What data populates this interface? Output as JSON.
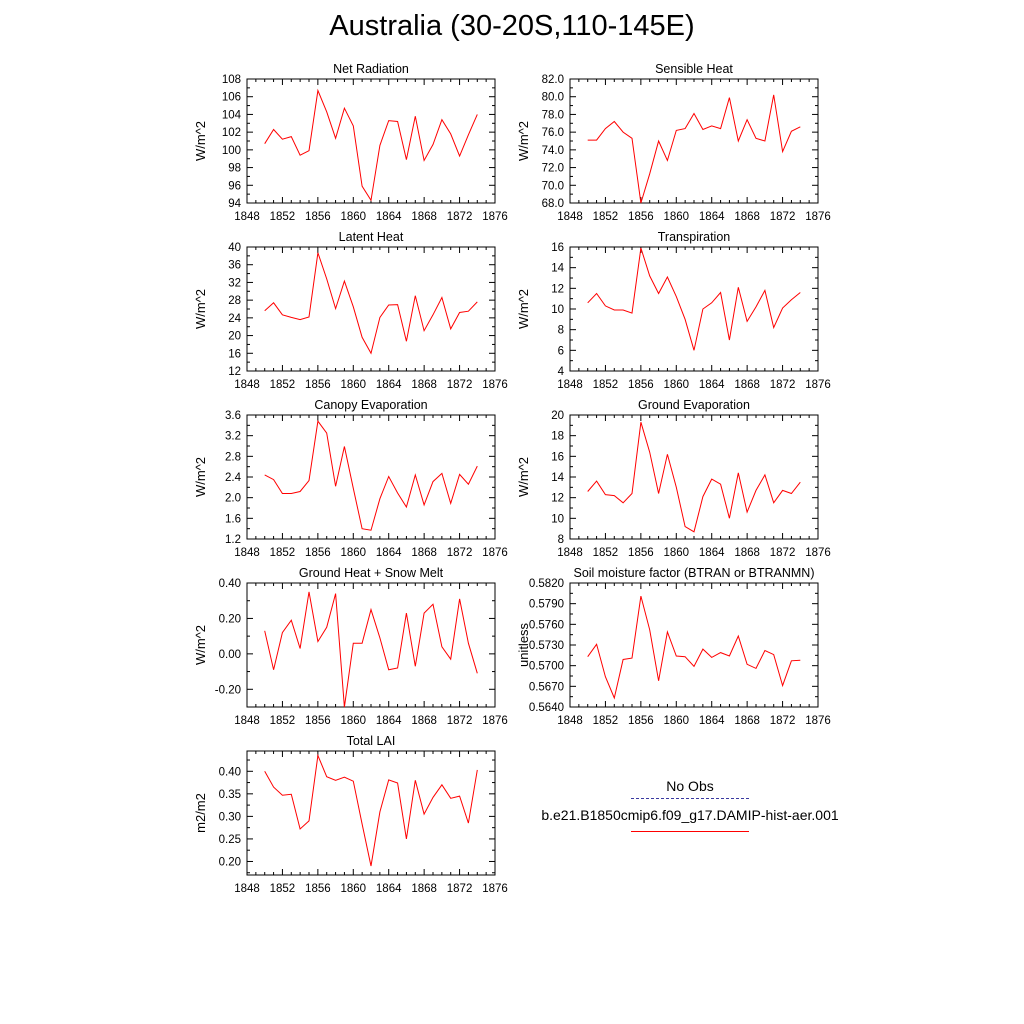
{
  "title": "Australia (30-20S,110-145E)",
  "colors": {
    "model_line": "#ff0000",
    "obs_line": "#3a3aa0",
    "axis": "#000000"
  },
  "legend": {
    "obs_label": "No Obs",
    "model_label": "b.e21.B1850cmip6.f09_g17.DAMIP-hist-aer.001"
  },
  "chart_data": [
    {
      "type": "line",
      "title": "Net Radiation",
      "xlabel": "",
      "ylabel": "W/m^2",
      "xlim": [
        1848,
        1876
      ],
      "ylim": [
        94,
        108
      ],
      "xticks": [
        "1848",
        "1852",
        "1856",
        "1860",
        "1864",
        "1868",
        "1872",
        "1876"
      ],
      "yticks": [
        "94",
        "96",
        "98",
        "100",
        "102",
        "104",
        "106",
        "108"
      ],
      "x": [
        1850,
        1851,
        1852,
        1853,
        1854,
        1855,
        1856,
        1857,
        1858,
        1859,
        1860,
        1861,
        1862,
        1863,
        1864,
        1865,
        1866,
        1867,
        1868,
        1869,
        1870,
        1871,
        1872,
        1873,
        1874
      ],
      "series": [
        {
          "values": [
            100.7,
            102.3,
            101.2,
            101.5,
            99.4,
            99.9,
            106.7,
            104.3,
            101.3,
            104.7,
            102.7,
            95.9,
            94.3,
            100.5,
            103.3,
            103.2,
            98.9,
            103.8,
            98.8,
            100.6,
            103.4,
            101.8,
            99.3,
            101.7,
            104.0
          ]
        }
      ]
    },
    {
      "type": "line",
      "title": "Sensible Heat",
      "xlabel": "",
      "ylabel": "W/m^2",
      "xlim": [
        1848,
        1876
      ],
      "ylim": [
        68,
        82
      ],
      "xticks": [
        "1848",
        "1852",
        "1856",
        "1860",
        "1864",
        "1868",
        "1872",
        "1876"
      ],
      "yticks": [
        "68.0",
        "70.0",
        "72.0",
        "74.0",
        "76.0",
        "78.0",
        "80.0",
        "82.0"
      ],
      "x": [
        1850,
        1851,
        1852,
        1853,
        1854,
        1855,
        1856,
        1857,
        1858,
        1859,
        1860,
        1861,
        1862,
        1863,
        1864,
        1865,
        1866,
        1867,
        1868,
        1869,
        1870,
        1871,
        1872,
        1873,
        1874
      ],
      "series": [
        {
          "values": [
            75.1,
            75.1,
            76.4,
            77.2,
            76.0,
            75.3,
            68.0,
            71.3,
            75.0,
            72.8,
            76.2,
            76.4,
            78.1,
            76.3,
            76.7,
            76.4,
            79.9,
            75.0,
            77.4,
            75.3,
            75.0,
            80.2,
            73.8,
            76.1,
            76.6
          ]
        }
      ]
    },
    {
      "type": "line",
      "title": "Latent Heat",
      "xlabel": "",
      "ylabel": "W/m^2",
      "xlim": [
        1848,
        1876
      ],
      "ylim": [
        12,
        40
      ],
      "xticks": [
        "1848",
        "1852",
        "1856",
        "1860",
        "1864",
        "1868",
        "1872",
        "1876"
      ],
      "yticks": [
        "12",
        "16",
        "20",
        "24",
        "28",
        "32",
        "36",
        "40"
      ],
      "x": [
        1850,
        1851,
        1852,
        1853,
        1854,
        1855,
        1856,
        1857,
        1858,
        1859,
        1860,
        1861,
        1862,
        1863,
        1864,
        1865,
        1866,
        1867,
        1868,
        1869,
        1870,
        1871,
        1872,
        1873,
        1874
      ],
      "series": [
        {
          "values": [
            25.6,
            27.4,
            24.7,
            24.1,
            23.6,
            24.2,
            38.7,
            32.8,
            26.1,
            32.3,
            26.5,
            19.6,
            16.0,
            24.1,
            26.9,
            27.0,
            18.7,
            29.0,
            21.1,
            24.7,
            28.6,
            21.5,
            25.2,
            25.5,
            27.6
          ]
        }
      ]
    },
    {
      "type": "line",
      "title": "Transpiration",
      "xlabel": "",
      "ylabel": "W/m^2",
      "xlim": [
        1848,
        1876
      ],
      "ylim": [
        4,
        16
      ],
      "xticks": [
        "1848",
        "1852",
        "1856",
        "1860",
        "1864",
        "1868",
        "1872",
        "1876"
      ],
      "yticks": [
        "4",
        "6",
        "8",
        "10",
        "12",
        "14",
        "16"
      ],
      "x": [
        1850,
        1851,
        1852,
        1853,
        1854,
        1855,
        1856,
        1857,
        1858,
        1859,
        1860,
        1861,
        1862,
        1863,
        1864,
        1865,
        1866,
        1867,
        1868,
        1869,
        1870,
        1871,
        1872,
        1873,
        1874
      ],
      "series": [
        {
          "values": [
            10.6,
            11.5,
            10.3,
            9.9,
            9.9,
            9.6,
            15.9,
            13.2,
            11.5,
            13.1,
            11.2,
            9.0,
            6.0,
            10.0,
            10.6,
            11.6,
            7.0,
            12.1,
            8.8,
            10.2,
            11.8,
            8.2,
            10.1,
            10.9,
            11.6
          ]
        }
      ]
    },
    {
      "type": "line",
      "title": "Canopy Evaporation",
      "xlabel": "",
      "ylabel": "W/m^2",
      "xlim": [
        1848,
        1876
      ],
      "ylim": [
        1.2,
        3.6
      ],
      "xticks": [
        "1848",
        "1852",
        "1856",
        "1860",
        "1864",
        "1868",
        "1872",
        "1876"
      ],
      "yticks": [
        "1.2",
        "1.6",
        "2.0",
        "2.4",
        "2.8",
        "3.2",
        "3.6"
      ],
      "x": [
        1850,
        1851,
        1852,
        1853,
        1854,
        1855,
        1856,
        1857,
        1858,
        1859,
        1860,
        1861,
        1862,
        1863,
        1864,
        1865,
        1866,
        1867,
        1868,
        1869,
        1870,
        1871,
        1872,
        1873,
        1874
      ],
      "series": [
        {
          "values": [
            2.44,
            2.35,
            2.08,
            2.08,
            2.12,
            2.33,
            3.48,
            3.25,
            2.22,
            2.99,
            2.18,
            1.4,
            1.37,
            1.98,
            2.41,
            2.09,
            1.82,
            2.44,
            1.86,
            2.31,
            2.47,
            1.89,
            2.45,
            2.26,
            2.61
          ]
        }
      ]
    },
    {
      "type": "line",
      "title": "Ground Evaporation",
      "xlabel": "",
      "ylabel": "W/m^2",
      "xlim": [
        1848,
        1876
      ],
      "ylim": [
        8,
        20
      ],
      "xticks": [
        "1848",
        "1852",
        "1856",
        "1860",
        "1864",
        "1868",
        "1872",
        "1876"
      ],
      "yticks": [
        "8",
        "10",
        "12",
        "14",
        "16",
        "18",
        "20"
      ],
      "x": [
        1850,
        1851,
        1852,
        1853,
        1854,
        1855,
        1856,
        1857,
        1858,
        1859,
        1860,
        1861,
        1862,
        1863,
        1864,
        1865,
        1866,
        1867,
        1868,
        1869,
        1870,
        1871,
        1872,
        1873,
        1874
      ],
      "series": [
        {
          "values": [
            12.6,
            13.6,
            12.3,
            12.2,
            11.5,
            12.4,
            19.3,
            16.4,
            12.4,
            16.2,
            13.0,
            9.2,
            8.7,
            12.1,
            13.8,
            13.3,
            10.0,
            14.4,
            10.6,
            12.7,
            14.2,
            11.5,
            12.7,
            12.4,
            13.5
          ]
        }
      ]
    },
    {
      "type": "line",
      "title": "Ground Heat + Snow Melt",
      "xlabel": "",
      "ylabel": "W/m^2",
      "xlim": [
        1848,
        1876
      ],
      "ylim": [
        -0.3,
        0.4
      ],
      "xticks": [
        "1848",
        "1852",
        "1856",
        "1860",
        "1864",
        "1868",
        "1872",
        "1876"
      ],
      "yticks": [
        "-0.20",
        "0.00",
        "0.20",
        "0.40"
      ],
      "x": [
        1850,
        1851,
        1852,
        1853,
        1854,
        1855,
        1856,
        1857,
        1858,
        1859,
        1860,
        1861,
        1862,
        1863,
        1864,
        1865,
        1866,
        1867,
        1868,
        1869,
        1870,
        1871,
        1872,
        1873,
        1874
      ],
      "series": [
        {
          "values": [
            0.13,
            -0.09,
            0.12,
            0.19,
            0.03,
            0.35,
            0.07,
            0.15,
            0.34,
            -0.3,
            0.06,
            0.06,
            0.25,
            0.09,
            -0.09,
            -0.08,
            0.23,
            -0.07,
            0.23,
            0.28,
            0.04,
            -0.03,
            0.31,
            0.06,
            -0.11
          ]
        }
      ]
    },
    {
      "type": "line",
      "title": "Soil moisture factor (BTRAN or BTRANMN)",
      "xlabel": "",
      "ylabel": "unitless",
      "xlim": [
        1848,
        1876
      ],
      "ylim": [
        0.564,
        0.582
      ],
      "xticks": [
        "1848",
        "1852",
        "1856",
        "1860",
        "1864",
        "1868",
        "1872",
        "1876"
      ],
      "yticks": [
        "0.5640",
        "0.5670",
        "0.5700",
        "0.5730",
        "0.5760",
        "0.5790",
        "0.5820"
      ],
      "x": [
        1850,
        1851,
        1852,
        1853,
        1854,
        1855,
        1856,
        1857,
        1858,
        1859,
        1860,
        1861,
        1862,
        1863,
        1864,
        1865,
        1866,
        1867,
        1868,
        1869,
        1870,
        1871,
        1872,
        1873,
        1874
      ],
      "series": [
        {
          "values": [
            0.5713,
            0.5731,
            0.5684,
            0.5653,
            0.5709,
            0.5711,
            0.5801,
            0.5752,
            0.5678,
            0.5749,
            0.5714,
            0.5713,
            0.5699,
            0.5724,
            0.5712,
            0.5719,
            0.5714,
            0.5743,
            0.5702,
            0.5696,
            0.5722,
            0.5716,
            0.5671,
            0.5707,
            0.5708
          ]
        }
      ]
    },
    {
      "type": "line",
      "title": "Total LAI",
      "xlabel": "",
      "ylabel": "m2/m2",
      "xlim": [
        1848,
        1876
      ],
      "ylim": [
        0.17,
        0.445
      ],
      "xticks": [
        "1848",
        "1852",
        "1856",
        "1860",
        "1864",
        "1868",
        "1872",
        "1876"
      ],
      "yticks": [
        "0.20",
        "0.25",
        "0.30",
        "0.35",
        "0.40"
      ],
      "x": [
        1850,
        1851,
        1852,
        1853,
        1854,
        1855,
        1856,
        1857,
        1858,
        1859,
        1860,
        1861,
        1862,
        1863,
        1864,
        1865,
        1866,
        1867,
        1868,
        1869,
        1870,
        1871,
        1872,
        1873,
        1874
      ],
      "series": [
        {
          "values": [
            0.4,
            0.365,
            0.347,
            0.349,
            0.272,
            0.29,
            0.435,
            0.388,
            0.38,
            0.387,
            0.378,
            0.283,
            0.19,
            0.31,
            0.381,
            0.374,
            0.25,
            0.38,
            0.305,
            0.342,
            0.37,
            0.34,
            0.345,
            0.285,
            0.403
          ]
        }
      ]
    }
  ]
}
